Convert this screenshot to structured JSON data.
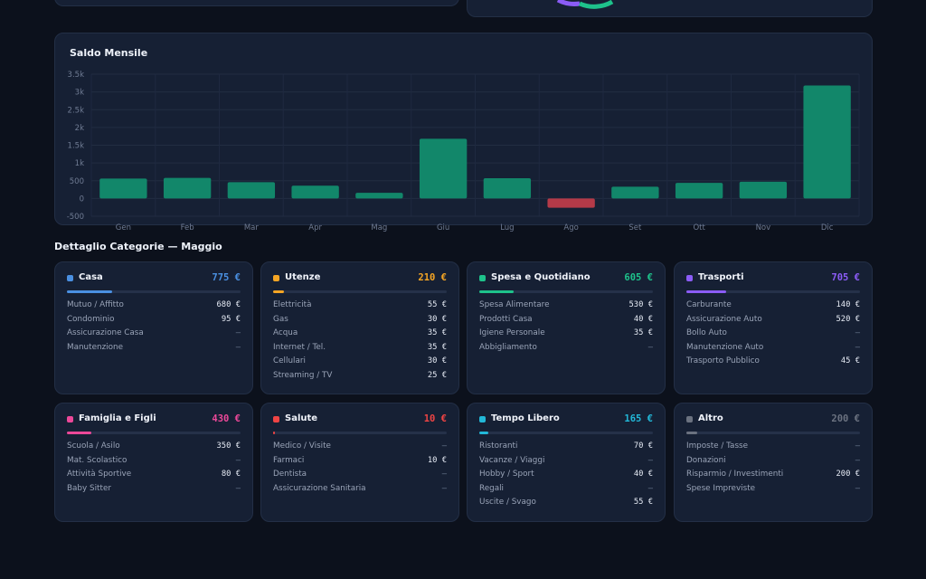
{
  "months": [
    "Gen",
    "Feb",
    "Mar",
    "Apr",
    "Mag",
    "Giu",
    "Lug",
    "Ago",
    "Set",
    "Ott",
    "Nov",
    "Dic"
  ],
  "saldo": {
    "title": "Saldo Mensile",
    "chart_data": {
      "type": "bar",
      "title": "Saldo Mensile",
      "categories": [
        "Gen",
        "Feb",
        "Mar",
        "Apr",
        "Mag",
        "Giu",
        "Lug",
        "Ago",
        "Set",
        "Ott",
        "Nov",
        "Dic"
      ],
      "values": [
        560,
        580,
        460,
        360,
        160,
        1680,
        570,
        -260,
        330,
        440,
        470,
        3180
      ],
      "y_ticks": [
        "3.5k",
        "3k",
        "2.5k",
        "2k",
        "1.5k",
        "1k",
        "500",
        "0",
        "-500"
      ],
      "ylim": [
        -500,
        3500
      ],
      "grid": true,
      "positive_color": "#12876a",
      "negative_color": "#b43a48"
    }
  },
  "section_title": "Dettaglio Categorie — Maggio",
  "categories": [
    {
      "name": "Casa",
      "total": "775 €",
      "color": "#4a90e2",
      "progress": 0.26,
      "items": [
        [
          "Mutuo / Affitto",
          "680 €"
        ],
        [
          "Condominio",
          "95 €"
        ],
        [
          "Assicurazione Casa",
          "—"
        ],
        [
          "Manutenzione",
          "—"
        ]
      ]
    },
    {
      "name": "Utenze",
      "total": "210 €",
      "color": "#f5a524",
      "progress": 0.06,
      "items": [
        [
          "Elettricità",
          "55 €"
        ],
        [
          "Gas",
          "30 €"
        ],
        [
          "Acqua",
          "35 €"
        ],
        [
          "Internet / Tel.",
          "35 €"
        ],
        [
          "Cellulari",
          "30 €"
        ],
        [
          "Streaming / TV",
          "25 €"
        ]
      ]
    },
    {
      "name": "Spesa e Quotidiano",
      "total": "605 €",
      "color": "#1ec28b",
      "progress": 0.2,
      "items": [
        [
          "Spesa Alimentare",
          "530 €"
        ],
        [
          "Prodotti Casa",
          "40 €"
        ],
        [
          "Igiene Personale",
          "35 €"
        ],
        [
          "Abbigliamento",
          "—"
        ]
      ]
    },
    {
      "name": "Trasporti",
      "total": "705 €",
      "color": "#8b5cf6",
      "progress": 0.23,
      "items": [
        [
          "Carburante",
          "140 €"
        ],
        [
          "Assicurazione Auto",
          "520 €"
        ],
        [
          "Bollo Auto",
          "—"
        ],
        [
          "Manutenzione Auto",
          "—"
        ],
        [
          "Trasporto Pubblico",
          "45 €"
        ]
      ]
    },
    {
      "name": "Famiglia e Figli",
      "total": "430 €",
      "color": "#ec4899",
      "progress": 0.14,
      "items": [
        [
          "Scuola / Asilo",
          "350 €"
        ],
        [
          "Mat. Scolastico",
          "—"
        ],
        [
          "Attività Sportive",
          "80 €"
        ],
        [
          "Baby Sitter",
          "—"
        ]
      ]
    },
    {
      "name": "Salute",
      "total": "10 €",
      "color": "#ef4444",
      "progress": 0.01,
      "items": [
        [
          "Medico / Visite",
          "—"
        ],
        [
          "Farmaci",
          "10 €"
        ],
        [
          "Dentista",
          "—"
        ],
        [
          "Assicurazione Sanitaria",
          "—"
        ]
      ]
    },
    {
      "name": "Tempo Libero",
      "total": "165 €",
      "color": "#22b8d8",
      "progress": 0.05,
      "items": [
        [
          "Ristoranti",
          "70 €"
        ],
        [
          "Vacanze / Viaggi",
          "—"
        ],
        [
          "Hobby / Sport",
          "40 €"
        ],
        [
          "Regali",
          "—"
        ],
        [
          "Uscite / Svago",
          "55 €"
        ]
      ]
    },
    {
      "name": "Altro",
      "total": "200 €",
      "color": "#6b7280",
      "progress": 0.06,
      "items": [
        [
          "Imposte / Tasse",
          "—"
        ],
        [
          "Donazioni",
          "—"
        ],
        [
          "Risparmio / Investimenti",
          "200 €"
        ],
        [
          "Spese Impreviste",
          "—"
        ]
      ]
    }
  ]
}
